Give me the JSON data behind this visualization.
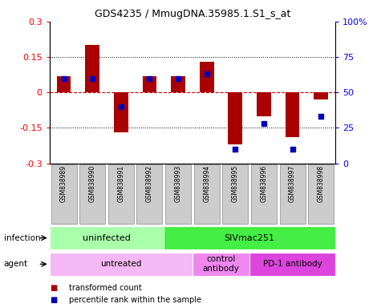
{
  "title": "GDS4235 / MmugDNA.35985.1.S1_s_at",
  "samples": [
    "GSM838989",
    "GSM838990",
    "GSM838991",
    "GSM838992",
    "GSM838993",
    "GSM838994",
    "GSM838995",
    "GSM838996",
    "GSM838997",
    "GSM838998"
  ],
  "transformed_count": [
    0.07,
    0.2,
    -0.17,
    0.07,
    0.07,
    0.13,
    -0.22,
    -0.1,
    -0.19,
    -0.03
  ],
  "percentile_rank": [
    60,
    60,
    40,
    60,
    60,
    63,
    10,
    28,
    10,
    33
  ],
  "ylim": [
    -0.3,
    0.3
  ],
  "yticks_left": [
    -0.3,
    -0.15,
    0,
    0.15,
    0.3
  ],
  "yticks_right": [
    0,
    25,
    50,
    75,
    100
  ],
  "bar_color": "#aa0000",
  "dot_color": "#0000bb",
  "hline_color": "#cc0000",
  "infection_groups": [
    {
      "text": "uninfected",
      "start": 0,
      "end": 4,
      "color": "#aaffaa"
    },
    {
      "text": "SIVmac251",
      "start": 4,
      "end": 10,
      "color": "#44ee44"
    }
  ],
  "agent_groups": [
    {
      "text": "untreated",
      "start": 0,
      "end": 5,
      "color": "#f4b8f4"
    },
    {
      "text": "control\nantibody",
      "start": 5,
      "end": 7,
      "color": "#ee88ee"
    },
    {
      "text": "PD-1 antibody",
      "start": 7,
      "end": 10,
      "color": "#dd44dd"
    }
  ],
  "legend_items": [
    {
      "label": "transformed count",
      "color": "#aa0000"
    },
    {
      "label": "percentile rank within the sample",
      "color": "#0000bb"
    }
  ],
  "bg_color": "#ffffff",
  "sample_box_color": "#cccccc",
  "sample_box_edge": "#888888"
}
